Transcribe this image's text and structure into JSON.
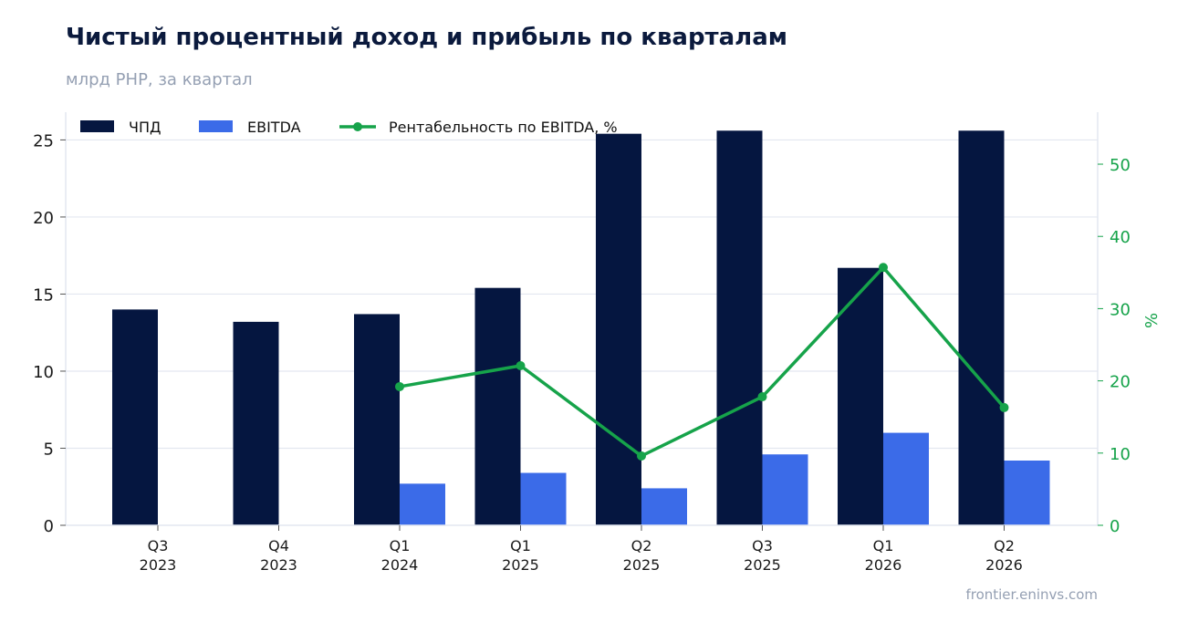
{
  "title": "Чистый процентный доход и прибыль по кварталам",
  "subtitle": "млрд РНР, за квартал",
  "footer": "frontier.eninvs.com",
  "chart_data": {
    "type": "bar",
    "categories": [
      [
        "Q3",
        "2023"
      ],
      [
        "Q4",
        "2023"
      ],
      [
        "Q1",
        "2024"
      ],
      [
        "Q1",
        "2025"
      ],
      [
        "Q2",
        "2025"
      ],
      [
        "Q3",
        "2025"
      ],
      [
        "Q1",
        "2026"
      ],
      [
        "Q2",
        "2026"
      ]
    ],
    "series": [
      {
        "name": "ЧПД",
        "type": "bar",
        "axis": "left",
        "color": "#051640",
        "values": [
          14.0,
          13.2,
          13.7,
          15.4,
          25.4,
          25.6,
          16.7,
          25.6
        ]
      },
      {
        "name": "EBITDA",
        "type": "bar",
        "axis": "left",
        "color": "#3b6be8",
        "values": [
          null,
          null,
          2.7,
          3.4,
          2.4,
          4.6,
          6.0,
          4.2
        ]
      },
      {
        "name": "Рентабельность по EBITDA, %",
        "type": "line",
        "axis": "right",
        "color": "#16a34a",
        "values": [
          null,
          null,
          19.2,
          22.1,
          9.6,
          17.8,
          35.7,
          16.3
        ]
      }
    ],
    "y_left": {
      "label": "",
      "ylim": [
        0,
        26.8
      ],
      "ticks": [
        0,
        5,
        10,
        15,
        20,
        25
      ]
    },
    "y_right": {
      "label": "%",
      "ylim": [
        0,
        57.2
      ],
      "ticks": [
        0,
        10,
        20,
        30,
        40,
        50
      ]
    },
    "grid": true,
    "legend_placement": "top-left"
  }
}
